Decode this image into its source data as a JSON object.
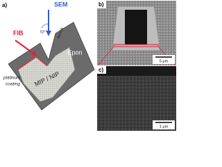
{
  "panel_a": {
    "label": "a)",
    "fib": "FIB",
    "sem": "SEM",
    "angle": "52°",
    "trench": "trench",
    "coating": [
      "platinum",
      "coating"
    ],
    "material": "MIP / NIP",
    "epon": "Epon"
  },
  "panel_b": {
    "label": "b)",
    "scale_bar": "5 μm"
  },
  "panel_c": {
    "label": "c)",
    "scale_bar": "1 μm"
  }
}
